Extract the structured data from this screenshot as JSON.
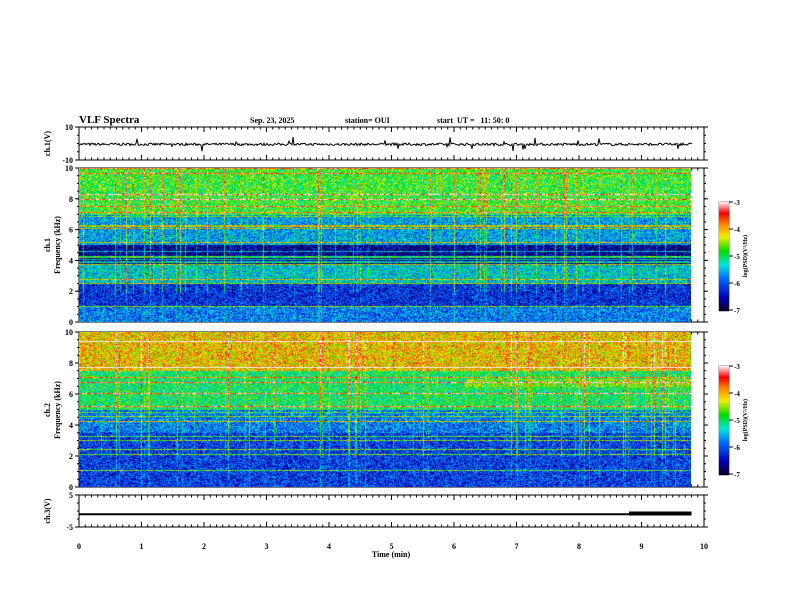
{
  "header": {
    "title": "VLF Spectra",
    "date": "Sep. 23, 2025",
    "station": "station= OUI",
    "start": "start  UT =   11: 50: 0"
  },
  "chart_data": {
    "type": "heatmap",
    "title": "VLF Spectra",
    "xlabel": "Time (min)",
    "xlim": [
      0,
      10
    ],
    "xticks": [
      "0",
      "1",
      "2",
      "3",
      "4",
      "5",
      "6",
      "7",
      "8",
      "9",
      "10"
    ],
    "panels": [
      {
        "id": "ch1",
        "type": "line",
        "ylabel": "ch.1(V)",
        "ylim": [
          -10,
          10
        ],
        "yticks": [
          "10",
          "-10"
        ],
        "baseline": -0.5
      },
      {
        "id": "ch1-spec",
        "type": "heatmap",
        "ylabel": "ch.1\nFrequency (kHz)",
        "ylabel_lines": [
          "ch.1",
          "Frequency (kHz)"
        ],
        "ylim": [
          0,
          10
        ],
        "yticks": [
          "0",
          "2",
          "4",
          "6",
          "8",
          "10"
        ],
        "colorbar": {
          "label": "log(PSD)(V²/Hz)",
          "range": [
            -7,
            -3
          ],
          "ticks": [
            "-3",
            "-4",
            "-5",
            "-6",
            "-7"
          ]
        }
      },
      {
        "id": "ch2-spec",
        "type": "heatmap",
        "ylabel_lines": [
          "ch.2",
          "Frequency (kHz)"
        ],
        "ylim": [
          0,
          10
        ],
        "yticks": [
          "0",
          "2",
          "4",
          "6",
          "8",
          "10"
        ],
        "colorbar": {
          "label": "log(PSD)(V²/Hz)",
          "range": [
            -7,
            -3
          ],
          "ticks": [
            "-3",
            "-4",
            "-5",
            "-6",
            "-7"
          ]
        }
      },
      {
        "id": "ch3",
        "type": "line",
        "ylabel": "ch.3(V)",
        "ylim": [
          -5,
          5
        ],
        "yticks": [
          "5",
          "-5"
        ],
        "segments": [
          {
            "x": [
              0,
              8.8
            ],
            "y": -1.0
          },
          {
            "x": [
              8.8,
              9.8
            ],
            "y": -0.8
          }
        ]
      }
    ]
  }
}
